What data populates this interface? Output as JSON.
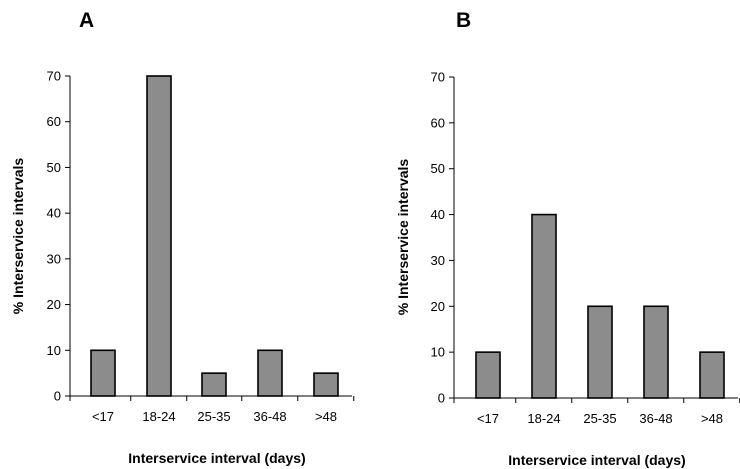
{
  "chart_data": [
    {
      "type": "bar",
      "panel_label": "A",
      "categories": [
        "<17",
        "18-24",
        "25-35",
        "36-48",
        ">48"
      ],
      "values": [
        10,
        70,
        5,
        10,
        5
      ],
      "xlabel": "Interservice interval (days)",
      "ylabel": "% Interservice intervals",
      "ylim": [
        0,
        70
      ],
      "yticks": [
        0,
        10,
        20,
        30,
        40,
        50,
        60,
        70
      ],
      "grid": false,
      "bar_color": "#8c8c8c"
    },
    {
      "type": "bar",
      "panel_label": "B",
      "categories": [
        "<17",
        "18-24",
        "25-35",
        "36-48",
        ">48"
      ],
      "values": [
        10,
        40,
        20,
        20,
        10
      ],
      "xlabel": "Interservice interval (days)",
      "ylabel": "% Interservice intervals",
      "ylim": [
        0,
        70
      ],
      "yticks": [
        0,
        10,
        20,
        30,
        40,
        50,
        60,
        70
      ],
      "grid": false,
      "bar_color": "#8c8c8c"
    }
  ]
}
